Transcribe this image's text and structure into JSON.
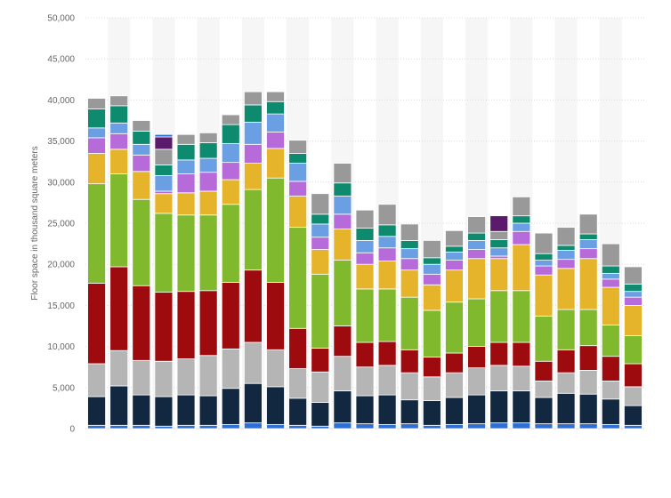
{
  "chart_data": {
    "type": "bar",
    "stacked": true,
    "title": "",
    "xlabel": "",
    "ylabel": "Floor space in thousand square meters",
    "ylim": [
      0,
      50000
    ],
    "yticks": [
      0,
      5000,
      10000,
      15000,
      20000,
      25000,
      30000,
      35000,
      40000,
      45000,
      50000
    ],
    "ytick_labels": [
      "0",
      "5,000",
      "10,000",
      "15,000",
      "20,000",
      "25,000",
      "30,000",
      "35,000",
      "40,000",
      "45,000",
      "50,000"
    ],
    "grid": true,
    "legend": "none",
    "colors": [
      "#2f6fd1",
      "#122840",
      "#b5b5b5",
      "#9e0b0f",
      "#80b82e",
      "#e6b42a",
      "#b76bdb",
      "#6a9fe3",
      "#0e8a6e",
      "#999999",
      "#5b1a6b"
    ],
    "stacks": [
      [
        400,
        3500,
        4000,
        9800,
        12100,
        3700,
        1900,
        1200,
        2300,
        1300
      ],
      [
        400,
        4800,
        4300,
        10200,
        11300,
        3000,
        1900,
        1300,
        2100,
        1200
      ],
      [
        400,
        3700,
        4200,
        9100,
        10500,
        3400,
        2000,
        1300,
        1600,
        1300
      ],
      [
        300,
        3600,
        4300,
        8400,
        9600,
        2400,
        300,
        1900,
        1300,
        1900,
        1500,
        300
      ],
      [
        400,
        3700,
        4400,
        8200,
        9300,
        2700,
        2300,
        1700,
        1900,
        1200
      ],
      [
        400,
        3600,
        4900,
        7900,
        9200,
        2900,
        2300,
        1700,
        1900,
        1200
      ],
      [
        500,
        4400,
        4800,
        8100,
        9500,
        3000,
        2100,
        2300,
        2300,
        1200
      ],
      [
        700,
        4800,
        5000,
        8800,
        9800,
        3200,
        2300,
        2700,
        2100,
        1600
      ],
      [
        500,
        4600,
        4500,
        8200,
        12700,
        3600,
        2000,
        2200,
        1500,
        1200
      ],
      [
        400,
        3300,
        3600,
        4900,
        12300,
        3800,
        1800,
        2200,
        1200,
        1600
      ],
      [
        300,
        2900,
        3700,
        2900,
        9000,
        3000,
        1500,
        1600,
        1200,
        2500
      ],
      [
        700,
        3900,
        4200,
        3700,
        8000,
        3800,
        1800,
        2200,
        1600,
        2400
      ],
      [
        600,
        3400,
        3500,
        3000,
        6500,
        3000,
        1400,
        1500,
        1500,
        2200
      ],
      [
        500,
        3600,
        3600,
        2900,
        6400,
        3400,
        1600,
        1400,
        1400,
        2500
      ],
      [
        600,
        2900,
        3300,
        2800,
        6400,
        3300,
        1400,
        1200,
        1000,
        2000
      ],
      [
        400,
        3000,
        2900,
        2400,
        5700,
        3100,
        1300,
        1200,
        800,
        2100
      ],
      [
        500,
        3300,
        3000,
        2400,
        6200,
        3900,
        1200,
        1000,
        700,
        1900
      ],
      [
        600,
        3500,
        3300,
        2600,
        5800,
        4900,
        1100,
        1100,
        900,
        2000
      ],
      [
        700,
        3900,
        3100,
        2800,
        6300,
        3900,
        300,
        1000,
        1000,
        1000,
        1900
      ],
      [
        700,
        3900,
        3000,
        2900,
        6300,
        5600,
        1600,
        1000,
        900,
        2300
      ],
      [
        600,
        3200,
        2000,
        2400,
        5500,
        5000,
        1100,
        700,
        800,
        2500
      ],
      [
        600,
        3700,
        2500,
        2800,
        4900,
        5000,
        1100,
        1100,
        600,
        2200
      ],
      [
        600,
        3600,
        2900,
        3000,
        4400,
        6200,
        1200,
        1100,
        700,
        2400
      ],
      [
        500,
        3100,
        2200,
        3000,
        3800,
        4600,
        1000,
        700,
        900,
        2700
      ],
      [
        400,
        2400,
        2300,
        2800,
        3400,
        3700,
        1000,
        700,
        900,
        2100
      ]
    ]
  }
}
